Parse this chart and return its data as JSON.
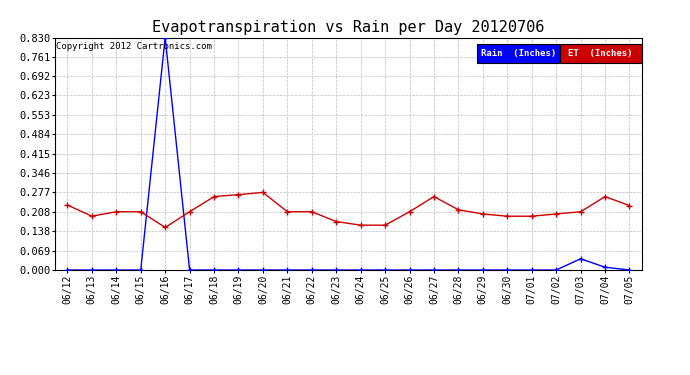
{
  "title": "Evapotranspiration vs Rain per Day 20120706",
  "copyright": "Copyright 2012 Cartronics.com",
  "x_labels": [
    "06/12",
    "06/13",
    "06/14",
    "06/15",
    "06/16",
    "06/17",
    "06/18",
    "06/19",
    "06/20",
    "06/21",
    "06/22",
    "06/23",
    "06/24",
    "06/25",
    "06/26",
    "06/27",
    "06/28",
    "06/29",
    "06/30",
    "07/01",
    "07/02",
    "07/03",
    "07/04",
    "07/05"
  ],
  "rain_values": [
    0.0,
    0.0,
    0.0,
    0.0,
    0.83,
    0.0,
    0.0,
    0.0,
    0.0,
    0.0,
    0.0,
    0.0,
    0.0,
    0.0,
    0.0,
    0.0,
    0.0,
    0.0,
    0.0,
    0.0,
    0.0,
    0.04,
    0.01,
    0.0
  ],
  "et_values": [
    0.232,
    0.192,
    0.208,
    0.208,
    0.152,
    0.208,
    0.262,
    0.269,
    0.277,
    0.208,
    0.208,
    0.173,
    0.16,
    0.16,
    0.208,
    0.262,
    0.215,
    0.2,
    0.192,
    0.192,
    0.2,
    0.208,
    0.262,
    0.23
  ],
  "ylim_max": 0.83,
  "yticks": [
    0.0,
    0.069,
    0.138,
    0.208,
    0.277,
    0.346,
    0.415,
    0.484,
    0.553,
    0.623,
    0.692,
    0.761,
    0.83
  ],
  "rain_color": "#0000ff",
  "et_color": "#cc0000",
  "background_color": "#ffffff",
  "grid_color": "#bbbbbb",
  "title_fontsize": 11,
  "legend_rain_label": "Rain  (Inches)",
  "legend_et_label": "ET  (Inches)"
}
